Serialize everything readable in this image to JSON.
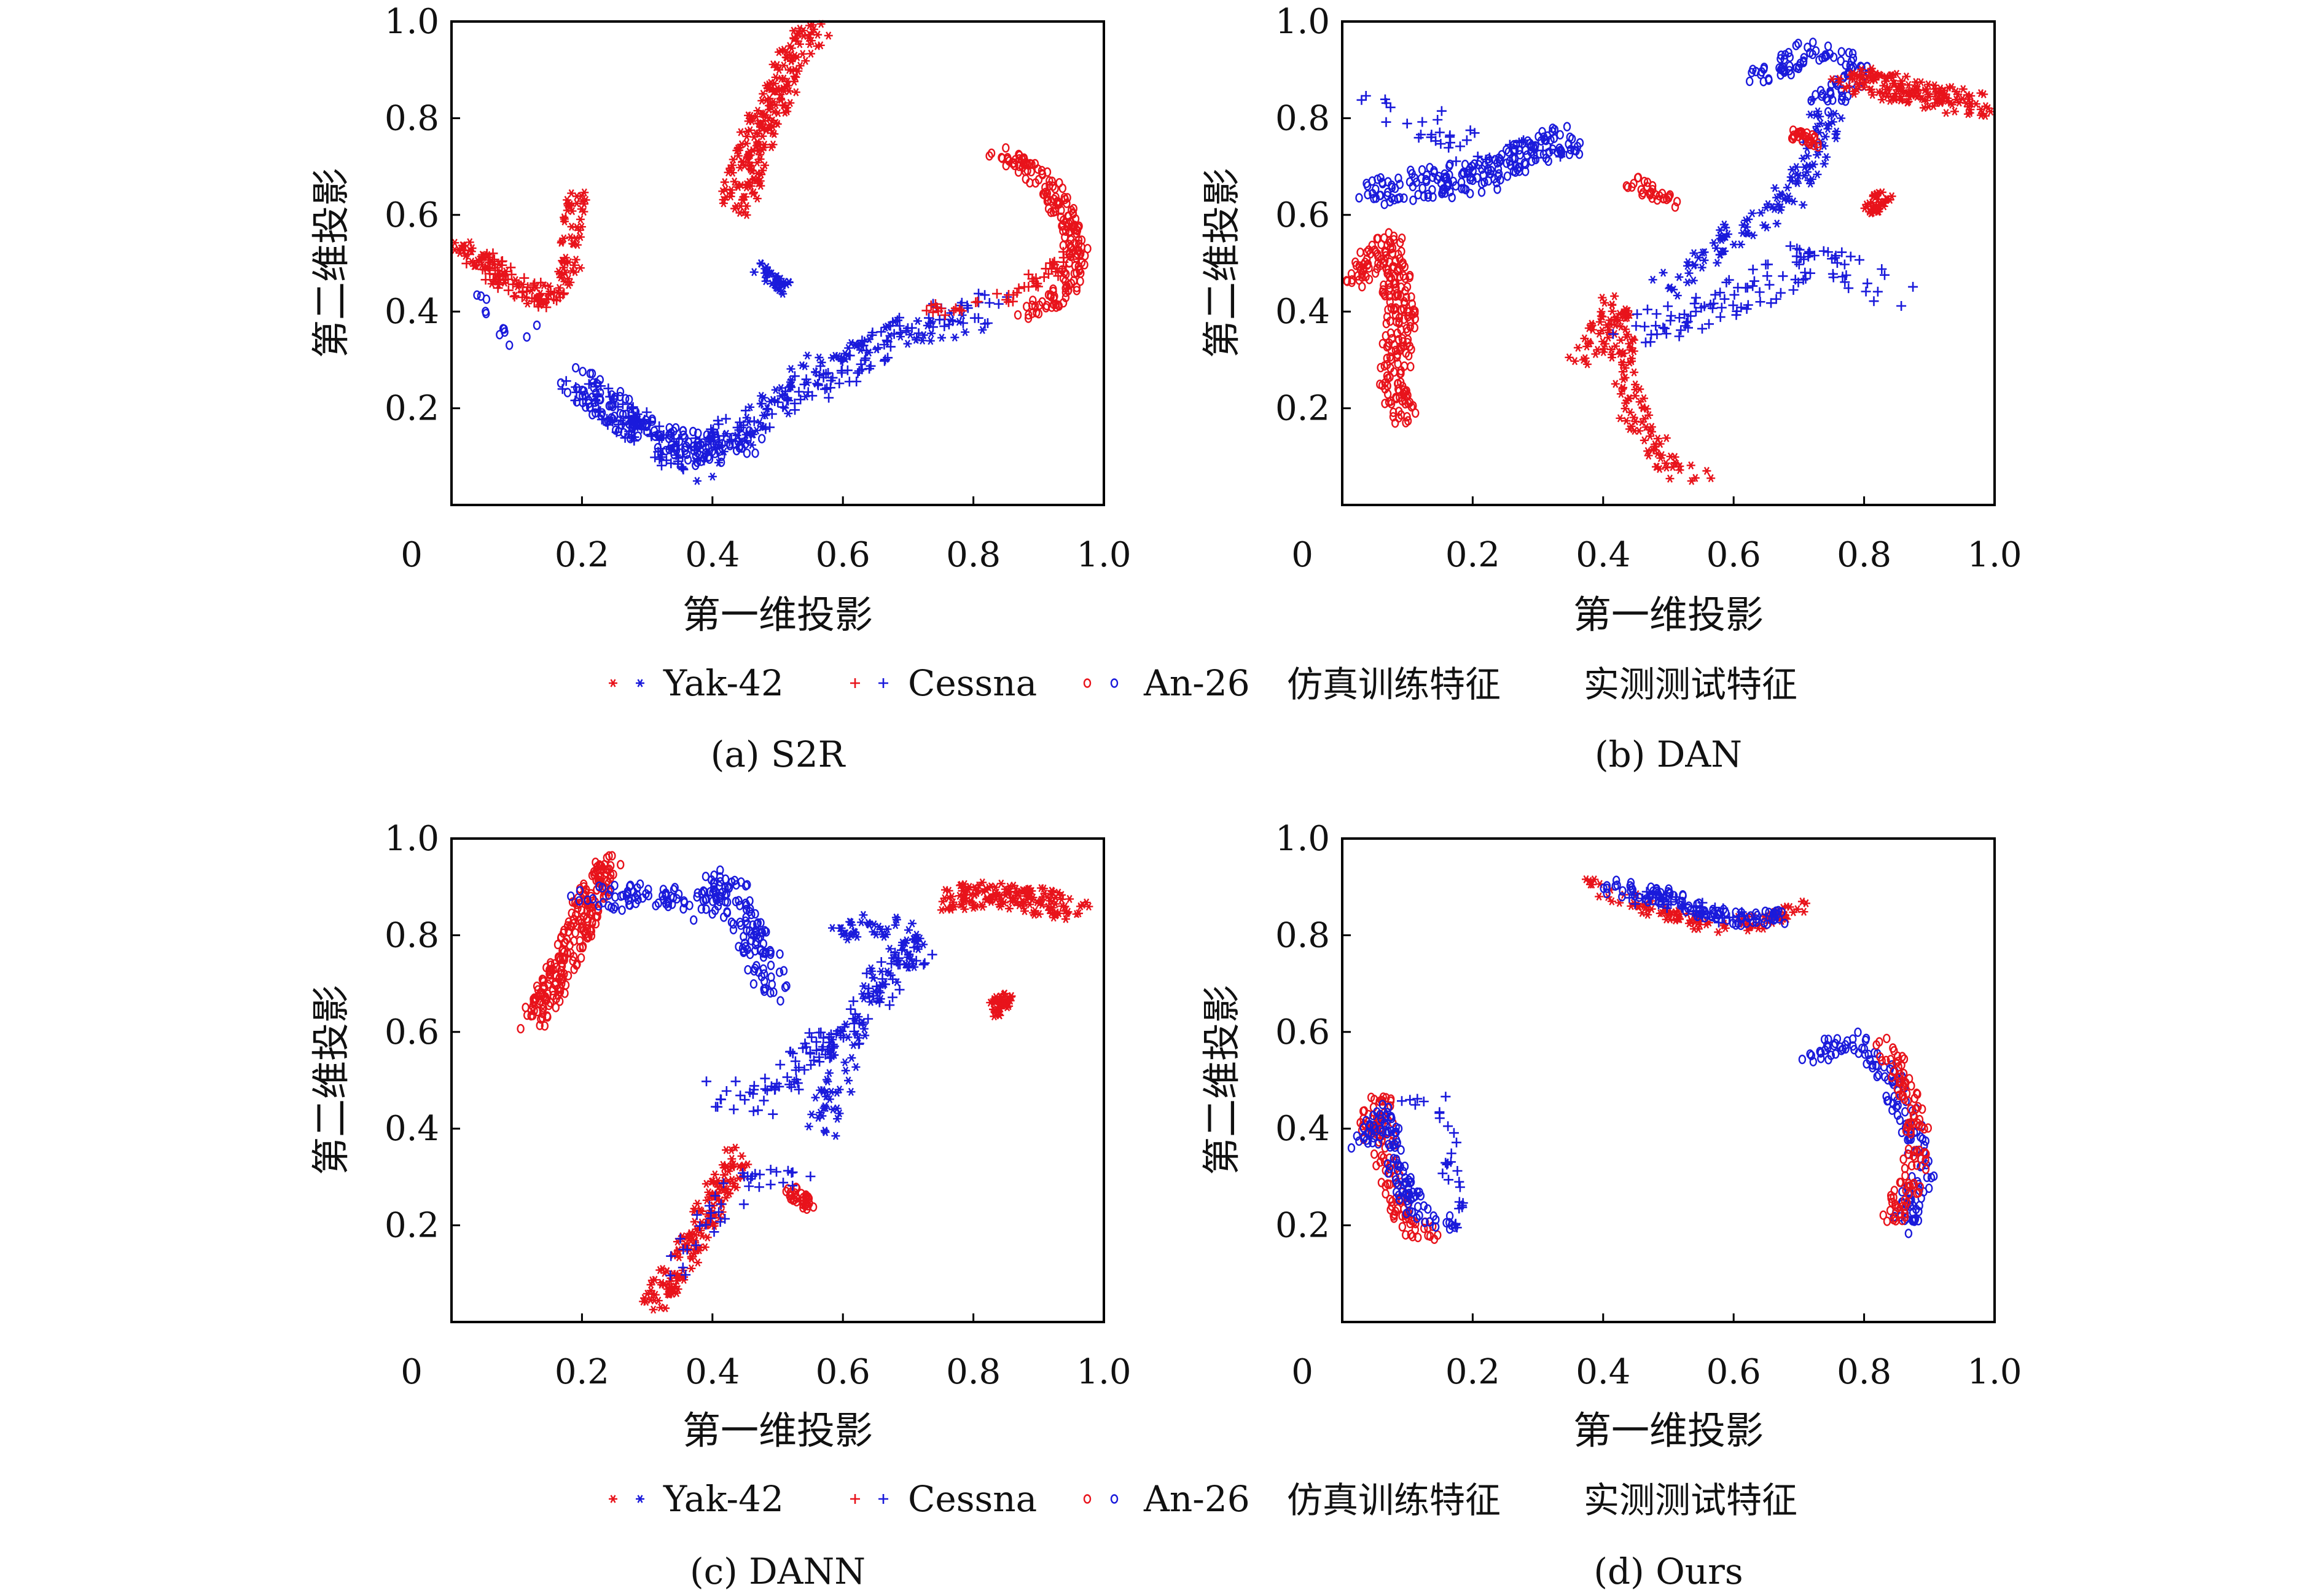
{
  "legend": {
    "yak": "Yak-42",
    "cessna": "Cessna",
    "an": "An-26",
    "sim": "仿真训练特征",
    "real": "实测测试特征"
  },
  "colors": {
    "sim": "#e8131b",
    "real": "#1a1adb"
  },
  "chart_data": [
    {
      "type": "scatter",
      "caption": "(a) S2R",
      "xlabel": "第一维投影",
      "ylabel": "第二维投影",
      "xlim": [
        0,
        1
      ],
      "ylim": [
        0,
        1
      ],
      "xticks": [
        "0",
        "0.2",
        "0.4",
        "0.6",
        "0.8",
        "1.0"
      ],
      "yticks": [
        "0.2",
        "0.4",
        "0.6",
        "0.8",
        "1.0"
      ],
      "clusters": [
        {
          "domain": "sim",
          "type": "yak",
          "n": 120,
          "path": [
            [
              0.01,
              0.54
            ],
            [
              0.08,
              0.46
            ],
            [
              0.14,
              0.42
            ],
            [
              0.18,
              0.48
            ],
            [
              0.19,
              0.64
            ]
          ],
          "spread": 0.02
        },
        {
          "domain": "sim",
          "type": "cessna",
          "n": 60,
          "path": [
            [
              0.03,
              0.52
            ],
            [
              0.1,
              0.45
            ],
            [
              0.17,
              0.42
            ]
          ],
          "spread": 0.025
        },
        {
          "domain": "real",
          "type": "an",
          "n": 12,
          "path": [
            [
              0.04,
              0.45
            ],
            [
              0.09,
              0.32
            ],
            [
              0.13,
              0.38
            ]
          ],
          "spread": 0.01
        },
        {
          "domain": "sim",
          "type": "yak",
          "n": 220,
          "path": [
            [
              0.44,
              0.62
            ],
            [
              0.47,
              0.78
            ],
            [
              0.52,
              0.9
            ],
            [
              0.55,
              0.98
            ]
          ],
          "spread": 0.03
        },
        {
          "domain": "real",
          "type": "yak",
          "n": 35,
          "path": [
            [
              0.47,
              0.49
            ],
            [
              0.52,
              0.44
            ]
          ],
          "spread": 0.015
        },
        {
          "domain": "real",
          "type": "an",
          "n": 170,
          "path": [
            [
              0.19,
              0.26
            ],
            [
              0.28,
              0.17
            ],
            [
              0.38,
              0.11
            ],
            [
              0.46,
              0.14
            ]
          ],
          "spread": 0.035
        },
        {
          "domain": "real",
          "type": "cessna",
          "n": 210,
          "path": [
            [
              0.2,
              0.24
            ],
            [
              0.35,
              0.1
            ],
            [
              0.5,
              0.2
            ],
            [
              0.62,
              0.3
            ],
            [
              0.72,
              0.39
            ],
            [
              0.84,
              0.41
            ]
          ],
          "spread": 0.035
        },
        {
          "domain": "real",
          "type": "yak",
          "n": 90,
          "path": [
            [
              0.38,
              0.06
            ],
            [
              0.55,
              0.28
            ],
            [
              0.7,
              0.36
            ],
            [
              0.8,
              0.38
            ]
          ],
          "spread": 0.03
        },
        {
          "domain": "sim",
          "type": "an",
          "n": 180,
          "path": [
            [
              0.84,
              0.73
            ],
            [
              0.91,
              0.67
            ],
            [
              0.95,
              0.58
            ],
            [
              0.96,
              0.5
            ],
            [
              0.93,
              0.42
            ],
            [
              0.88,
              0.4
            ]
          ],
          "spread": 0.02
        },
        {
          "domain": "sim",
          "type": "cessna",
          "n": 50,
          "path": [
            [
              0.74,
              0.4
            ],
            [
              0.86,
              0.44
            ],
            [
              0.96,
              0.52
            ]
          ],
          "spread": 0.02
        }
      ]
    },
    {
      "type": "scatter",
      "caption": "(b) DAN",
      "xlabel": "第一维投影",
      "ylabel": "第二维投影",
      "xlim": [
        0,
        1
      ],
      "ylim": [
        0,
        1
      ],
      "xticks": [
        "0",
        "0.2",
        "0.4",
        "0.6",
        "0.8",
        "1.0"
      ],
      "yticks": [
        "0.2",
        "0.4",
        "0.6",
        "0.8",
        "1.0"
      ],
      "clusters": [
        {
          "domain": "sim",
          "type": "an",
          "n": 230,
          "path": [
            [
              0.02,
              0.46
            ],
            [
              0.07,
              0.55
            ],
            [
              0.09,
              0.4
            ],
            [
              0.08,
              0.25
            ],
            [
              0.09,
              0.18
            ]
          ],
          "spread": 0.025
        },
        {
          "domain": "real",
          "type": "an",
          "n": 200,
          "path": [
            [
              0.04,
              0.65
            ],
            [
              0.12,
              0.66
            ],
            [
              0.22,
              0.68
            ],
            [
              0.3,
              0.74
            ],
            [
              0.36,
              0.76
            ]
          ],
          "spread": 0.035
        },
        {
          "domain": "real",
          "type": "cessna",
          "n": 40,
          "path": [
            [
              0.05,
              0.85
            ],
            [
              0.18,
              0.74
            ],
            [
              0.34,
              0.72
            ]
          ],
          "spread": 0.04
        },
        {
          "domain": "sim",
          "type": "an",
          "n": 30,
          "path": [
            [
              0.44,
              0.67
            ],
            [
              0.51,
              0.63
            ]
          ],
          "spread": 0.015
        },
        {
          "domain": "sim",
          "type": "yak",
          "n": 150,
          "path": [
            [
              0.37,
              0.3
            ],
            [
              0.42,
              0.42
            ],
            [
              0.44,
              0.2
            ],
            [
              0.5,
              0.08
            ],
            [
              0.56,
              0.06
            ]
          ],
          "spread": 0.025
        },
        {
          "domain": "real",
          "type": "cessna",
          "n": 110,
          "path": [
            [
              0.42,
              0.35
            ],
            [
              0.55,
              0.4
            ],
            [
              0.64,
              0.45
            ],
            [
              0.72,
              0.52
            ],
            [
              0.85,
              0.44
            ]
          ],
          "spread": 0.04
        },
        {
          "domain": "real",
          "type": "yak",
          "n": 120,
          "path": [
            [
              0.5,
              0.45
            ],
            [
              0.58,
              0.55
            ],
            [
              0.66,
              0.6
            ],
            [
              0.72,
              0.7
            ],
            [
              0.74,
              0.82
            ]
          ],
          "spread": 0.03
        },
        {
          "domain": "real",
          "type": "an",
          "n": 100,
          "path": [
            [
              0.64,
              0.88
            ],
            [
              0.72,
              0.94
            ],
            [
              0.8,
              0.9
            ],
            [
              0.74,
              0.83
            ]
          ],
          "spread": 0.025
        },
        {
          "domain": "sim",
          "type": "yak",
          "n": 160,
          "path": [
            [
              0.78,
              0.88
            ],
            [
              0.86,
              0.86
            ],
            [
              0.92,
              0.84
            ],
            [
              0.98,
              0.83
            ]
          ],
          "spread": 0.03
        },
        {
          "domain": "sim",
          "type": "an",
          "n": 30,
          "path": [
            [
              0.69,
              0.77
            ],
            [
              0.73,
              0.75
            ]
          ],
          "spread": 0.012
        },
        {
          "domain": "sim",
          "type": "yak",
          "n": 40,
          "path": [
            [
              0.81,
              0.61
            ],
            [
              0.83,
              0.64
            ]
          ],
          "spread": 0.015
        }
      ]
    },
    {
      "type": "scatter",
      "caption": "(c) DANN",
      "xlabel": "第一维投影",
      "ylabel": "第二维投影",
      "xlim": [
        0,
        1
      ],
      "ylim": [
        0,
        1
      ],
      "xticks": [
        "0",
        "0.2",
        "0.4",
        "0.6",
        "0.8",
        "1.0"
      ],
      "yticks": [
        "0.2",
        "0.4",
        "0.6",
        "0.8",
        "1.0"
      ],
      "clusters": [
        {
          "domain": "sim",
          "type": "an",
          "n": 230,
          "path": [
            [
              0.12,
              0.62
            ],
            [
              0.16,
              0.7
            ],
            [
              0.19,
              0.8
            ],
            [
              0.22,
              0.9
            ],
            [
              0.24,
              0.95
            ]
          ],
          "spread": 0.025
        },
        {
          "domain": "real",
          "type": "an",
          "n": 200,
          "path": [
            [
              0.21,
              0.88
            ],
            [
              0.3,
              0.88
            ],
            [
              0.38,
              0.86
            ],
            [
              0.42,
              0.92
            ],
            [
              0.46,
              0.8
            ],
            [
              0.5,
              0.68
            ]
          ],
          "spread": 0.03
        },
        {
          "domain": "real",
          "type": "cessna",
          "n": 120,
          "path": [
            [
              0.4,
              0.48
            ],
            [
              0.48,
              0.46
            ],
            [
              0.55,
              0.56
            ],
            [
              0.62,
              0.6
            ],
            [
              0.66,
              0.7
            ],
            [
              0.72,
              0.78
            ]
          ],
          "spread": 0.035
        },
        {
          "domain": "real",
          "type": "yak",
          "n": 130,
          "path": [
            [
              0.58,
              0.8
            ],
            [
              0.66,
              0.82
            ],
            [
              0.72,
              0.78
            ],
            [
              0.66,
              0.72
            ],
            [
              0.61,
              0.6
            ],
            [
              0.57,
              0.4
            ]
          ],
          "spread": 0.03
        },
        {
          "domain": "sim",
          "type": "yak",
          "n": 170,
          "path": [
            [
              0.31,
              0.04
            ],
            [
              0.35,
              0.12
            ],
            [
              0.39,
              0.22
            ],
            [
              0.42,
              0.3
            ],
            [
              0.44,
              0.35
            ]
          ],
          "spread": 0.025
        },
        {
          "domain": "sim",
          "type": "an",
          "n": 35,
          "path": [
            [
              0.52,
              0.27
            ],
            [
              0.55,
              0.24
            ]
          ],
          "spread": 0.012
        },
        {
          "domain": "real",
          "type": "cessna",
          "n": 40,
          "path": [
            [
              0.32,
              0.08
            ],
            [
              0.45,
              0.3
            ],
            [
              0.55,
              0.3
            ]
          ],
          "spread": 0.03
        },
        {
          "domain": "sim",
          "type": "yak",
          "n": 160,
          "path": [
            [
              0.76,
              0.88
            ],
            [
              0.84,
              0.88
            ],
            [
              0.9,
              0.87
            ],
            [
              0.96,
              0.85
            ]
          ],
          "spread": 0.03
        },
        {
          "domain": "sim",
          "type": "yak",
          "n": 40,
          "path": [
            [
              0.83,
              0.64
            ],
            [
              0.85,
              0.67
            ]
          ],
          "spread": 0.015
        }
      ]
    },
    {
      "type": "scatter",
      "caption": "(d) Ours",
      "xlabel": "第一维投影",
      "ylabel": "第二维投影",
      "xlim": [
        0,
        1
      ],
      "ylim": [
        0,
        1
      ],
      "xticks": [
        "0",
        "0.2",
        "0.4",
        "0.6",
        "0.8",
        "1.0"
      ],
      "yticks": [
        "0.2",
        "0.4",
        "0.6",
        "0.8",
        "1.0"
      ],
      "clusters": [
        {
          "domain": "sim",
          "type": "yak",
          "n": 110,
          "path": [
            [
              0.37,
              0.91
            ],
            [
              0.46,
              0.86
            ],
            [
              0.56,
              0.82
            ],
            [
              0.66,
              0.83
            ],
            [
              0.7,
              0.86
            ]
          ],
          "spread": 0.018
        },
        {
          "domain": "real",
          "type": "an",
          "n": 100,
          "path": [
            [
              0.4,
              0.9
            ],
            [
              0.5,
              0.88
            ],
            [
              0.6,
              0.83
            ],
            [
              0.68,
              0.84
            ]
          ],
          "spread": 0.018
        },
        {
          "domain": "real",
          "type": "cessna",
          "n": 40,
          "path": [
            [
              0.45,
              0.88
            ],
            [
              0.6,
              0.84
            ]
          ],
          "spread": 0.02
        },
        {
          "domain": "sim",
          "type": "an",
          "n": 120,
          "path": [
            [
              0.03,
              0.38
            ],
            [
              0.06,
              0.46
            ],
            [
              0.07,
              0.32
            ],
            [
              0.1,
              0.2
            ],
            [
              0.14,
              0.18
            ]
          ],
          "spread": 0.02
        },
        {
          "domain": "real",
          "type": "an",
          "n": 110,
          "path": [
            [
              0.03,
              0.36
            ],
            [
              0.06,
              0.44
            ],
            [
              0.09,
              0.3
            ],
            [
              0.12,
              0.22
            ],
            [
              0.16,
              0.2
            ]
          ],
          "spread": 0.02
        },
        {
          "domain": "real",
          "type": "cessna",
          "n": 30,
          "path": [
            [
              0.08,
              0.44
            ],
            [
              0.15,
              0.47
            ],
            [
              0.18,
              0.2
            ]
          ],
          "spread": 0.015
        },
        {
          "domain": "real",
          "type": "an",
          "n": 150,
          "path": [
            [
              0.72,
              0.55
            ],
            [
              0.79,
              0.59
            ],
            [
              0.84,
              0.5
            ],
            [
              0.87,
              0.4
            ],
            [
              0.89,
              0.3
            ],
            [
              0.86,
              0.2
            ]
          ],
          "spread": 0.022
        },
        {
          "domain": "sim",
          "type": "an",
          "n": 110,
          "path": [
            [
              0.83,
              0.59
            ],
            [
              0.86,
              0.5
            ],
            [
              0.88,
              0.42
            ],
            [
              0.88,
              0.3
            ],
            [
              0.84,
              0.21
            ]
          ],
          "spread": 0.02
        }
      ]
    }
  ]
}
